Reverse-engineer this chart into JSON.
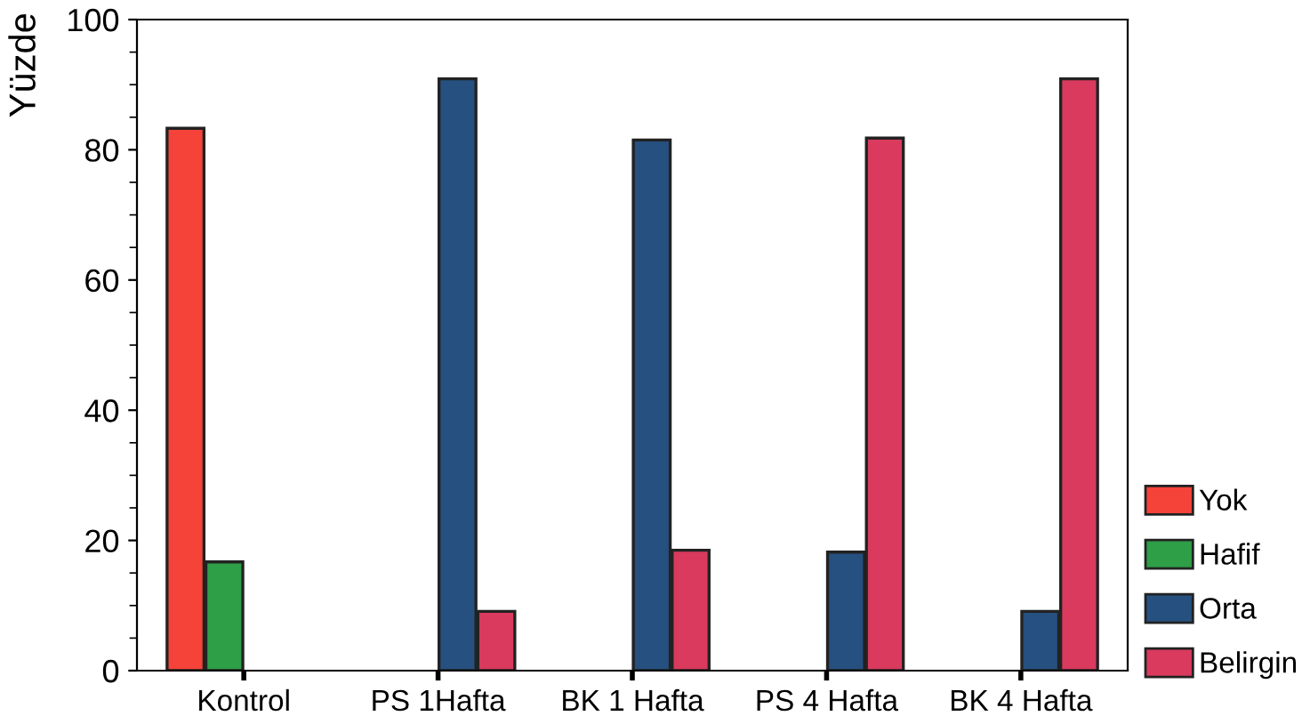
{
  "chart_data": {
    "type": "bar",
    "ylabel": "Yüzde",
    "categories": [
      "Kontrol",
      "PS 1Hafta",
      "BK 1 Hafta",
      "PS 4 Hafta",
      "BK 4 Hafta"
    ],
    "series": [
      {
        "name": "Yok",
        "color": "#f5433a",
        "values": [
          83.3,
          null,
          null,
          null,
          null
        ]
      },
      {
        "name": "Hafif",
        "color": "#2e9e47",
        "values": [
          16.7,
          null,
          null,
          null,
          null
        ]
      },
      {
        "name": "Orta",
        "color": "#25507f",
        "values": [
          null,
          90.9,
          81.5,
          18.2,
          9.1
        ]
      },
      {
        "name": "Belirgin",
        "color": "#d93a5e",
        "values": [
          null,
          9.1,
          18.5,
          81.8,
          90.9
        ]
      }
    ],
    "ylim": [
      0,
      100
    ],
    "yticks": [
      0,
      {
        "value": 5,
        "label": null
      },
      {
        "value": 10,
        "label": null
      },
      {
        "value": 15,
        "label": null
      },
      20,
      {
        "value": 25,
        "label": null
      },
      {
        "value": 30,
        "label": null
      },
      {
        "value": 35,
        "label": null
      },
      40,
      {
        "value": 45,
        "label": null
      },
      {
        "value": 50,
        "label": null
      },
      {
        "value": 55,
        "label": null
      },
      60,
      {
        "value": 65,
        "label": null
      },
      {
        "value": 70,
        "label": null
      },
      {
        "value": 75,
        "label": null
      },
      80,
      {
        "value": 85,
        "label": null
      },
      {
        "value": 90,
        "label": null
      },
      {
        "value": 95,
        "label": null
      },
      100
    ],
    "grid": false,
    "legend": "bottom right"
  }
}
